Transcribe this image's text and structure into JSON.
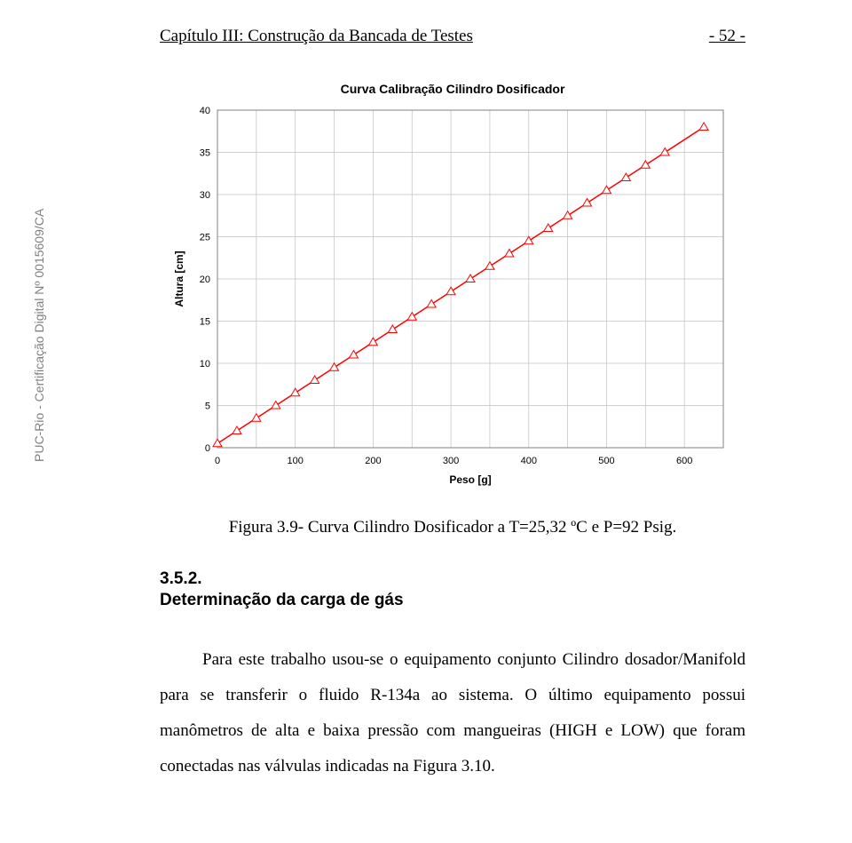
{
  "header": {
    "chapter": "Capítulo III: Construção da Bancada de Testes",
    "page": "- 52 -"
  },
  "sidebar": {
    "text": "PUC-Rio - Certificação Digital Nº 0015609/CA"
  },
  "chart": {
    "type": "line",
    "title": "Curva Calibração Cilindro Dosificador",
    "xlabel": "Peso [g]",
    "ylabel": "Altura [cm]",
    "xlim": [
      0,
      650
    ],
    "ylim": [
      0,
      40
    ],
    "xtick_step": 100,
    "ytick_step": 5,
    "xminor_step": 50,
    "background_color": "#ffffff",
    "grid_color": "#c0c0c0",
    "border_color": "#808080",
    "line_color": "#ff0000",
    "marker_color": "#ff0000",
    "marker_stroke": "#ff0000",
    "marker_fill": "#ffffff",
    "marker_size": 5,
    "line_width": 1.5,
    "axis_fontsize": 11,
    "label_fontsize": 12,
    "title_fontsize": 14,
    "points": [
      [
        0,
        0.5
      ],
      [
        25,
        2.0
      ],
      [
        50,
        3.5
      ],
      [
        75,
        5.0
      ],
      [
        100,
        6.5
      ],
      [
        125,
        8.0
      ],
      [
        150,
        9.5
      ],
      [
        175,
        11.0
      ],
      [
        200,
        12.5
      ],
      [
        225,
        14.0
      ],
      [
        250,
        15.5
      ],
      [
        275,
        17.0
      ],
      [
        300,
        18.5
      ],
      [
        325,
        20.0
      ],
      [
        350,
        21.5
      ],
      [
        375,
        23.0
      ],
      [
        400,
        24.5
      ],
      [
        425,
        26.0
      ],
      [
        450,
        27.5
      ],
      [
        475,
        29.0
      ],
      [
        500,
        30.5
      ],
      [
        525,
        32.0
      ],
      [
        550,
        33.5
      ],
      [
        575,
        35.0
      ],
      [
        625,
        38.0
      ]
    ]
  },
  "figure_caption": "Figura 3.9- Curva Cilindro Dosificador a T=25,32 ºC e P=92 Psig.",
  "section": {
    "number": "3.5.2.",
    "title": "Determinação da carga de gás"
  },
  "body": "Para este trabalho usou-se o equipamento conjunto Cilindro dosador/Manifold para se transferir o fluido R-134a ao sistema. O último equipamento possui manômetros de alta e baixa pressão com mangueiras (HIGH e LOW) que foram conectadas nas válvulas indicadas na Figura 3.10."
}
